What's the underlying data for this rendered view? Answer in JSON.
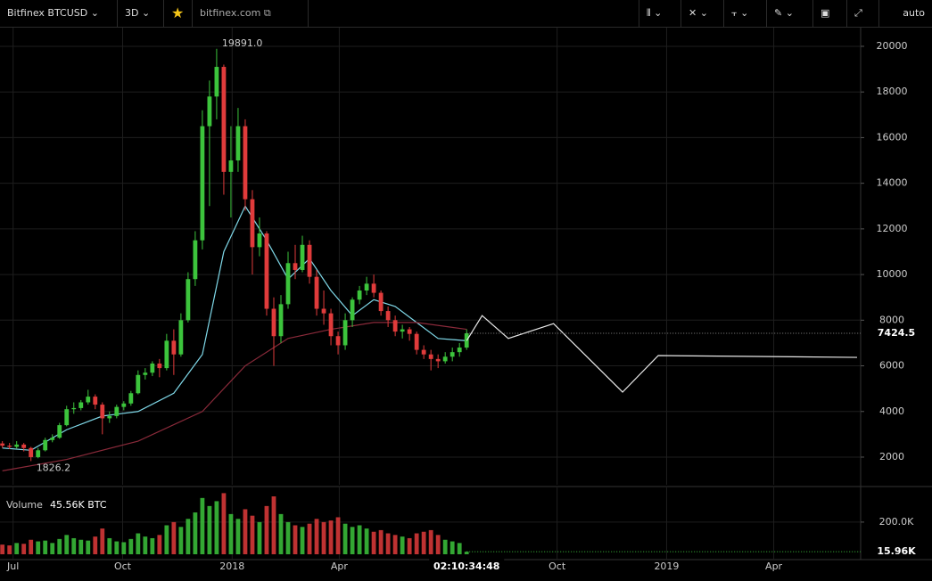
{
  "toolbar": {
    "symbol": "Bitfinex BTCUSD",
    "interval": "3D",
    "site": "bitfinex.com",
    "scale_mode": "auto"
  },
  "chart_data": {
    "type": "candlestick",
    "x": [
      -9,
      -3,
      3,
      9,
      15,
      21,
      27,
      33,
      39,
      45,
      51,
      57,
      63,
      69,
      75,
      81,
      87,
      93,
      99,
      105,
      111,
      117,
      123,
      129,
      135,
      141,
      147,
      153,
      159,
      165,
      171,
      177,
      183,
      189,
      195,
      201,
      207,
      213,
      219,
      225,
      231,
      237,
      243,
      249,
      255,
      261,
      267,
      273,
      279,
      285,
      291,
      297,
      303,
      309,
      315,
      321,
      327,
      333,
      339,
      345,
      351,
      357,
      363,
      369,
      375,
      381
    ],
    "open": [
      2600,
      2500,
      2450,
      2550,
      2400,
      2000,
      2300,
      2750,
      2850,
      3400,
      4100,
      4150,
      4400,
      4650,
      4300,
      3700,
      3800,
      4200,
      4350,
      4800,
      5600,
      5700,
      6100,
      5900,
      7100,
      6500,
      8000,
      9800,
      11500,
      16500,
      17800,
      19100,
      14500,
      15000,
      16500,
      13300,
      11200,
      11800,
      8500,
      7300,
      8700,
      10500,
      10200,
      11300,
      9900,
      8500,
      8300,
      7300,
      6900,
      8000,
      8900,
      9300,
      9600,
      9200,
      8400,
      8000,
      7500,
      7600,
      7400,
      6700,
      6500,
      6300,
      6200,
      6400,
      6600,
      6800
    ],
    "high": [
      2700,
      2620,
      2700,
      2620,
      2450,
      2400,
      2850,
      3000,
      3500,
      4250,
      4400,
      4500,
      4950,
      4750,
      4400,
      4000,
      4300,
      4450,
      4900,
      5800,
      5900,
      6200,
      6300,
      7400,
      7600,
      8300,
      10100,
      11900,
      17200,
      18500,
      19891,
      19200,
      16500,
      17300,
      16800,
      13700,
      12500,
      11900,
      9000,
      9100,
      11000,
      11300,
      11700,
      11500,
      10200,
      9300,
      8500,
      7500,
      8300,
      9000,
      9500,
      9900,
      10000,
      9300,
      8600,
      8200,
      7800,
      7700,
      7500,
      6900,
      6700,
      6500,
      6600,
      6800,
      7000,
      7600
    ],
    "low": [
      2400,
      2350,
      2380,
      2250,
      1826.2,
      1950,
      2250,
      2650,
      2800,
      3350,
      3900,
      4050,
      4300,
      4100,
      3000,
      3500,
      3700,
      4050,
      4250,
      4750,
      5400,
      5550,
      5500,
      5800,
      5600,
      6400,
      7900,
      9500,
      11100,
      13000,
      16800,
      13500,
      12500,
      14500,
      12800,
      10000,
      10800,
      8200,
      6000,
      7000,
      8500,
      9800,
      10100,
      9600,
      8200,
      7800,
      6900,
      6500,
      6700,
      7700,
      8700,
      9100,
      9000,
      8200,
      7700,
      7300,
      7200,
      7100,
      6500,
      6300,
      5800,
      5900,
      6100,
      6200,
      6400,
      6700
    ],
    "close": [
      2500,
      2450,
      2550,
      2400,
      2000,
      2300,
      2750,
      2850,
      3400,
      4100,
      4150,
      4400,
      4650,
      4300,
      3700,
      3800,
      4200,
      4350,
      4800,
      5600,
      5700,
      6100,
      5900,
      7100,
      6500,
      8000,
      9800,
      11500,
      16500,
      17800,
      19100,
      14500,
      15000,
      16500,
      13300,
      11200,
      11800,
      8500,
      7300,
      8700,
      10500,
      10200,
      11300,
      9900,
      8500,
      8300,
      7300,
      6900,
      8000,
      8900,
      9300,
      9600,
      9200,
      8400,
      8000,
      7500,
      7600,
      7400,
      6700,
      6500,
      6300,
      6200,
      6400,
      6600,
      6800,
      7424.5
    ],
    "up_color": "#3cc43c",
    "down_color": "#e03b3b",
    "xlim": [
      -11,
      712
    ],
    "xticks": [
      {
        "value": 0,
        "label": "Jul"
      },
      {
        "value": 92,
        "label": "Oct"
      },
      {
        "value": 184,
        "label": "2018"
      },
      {
        "value": 274,
        "label": "Apr"
      },
      {
        "value": 457,
        "label": "Oct"
      },
      {
        "value": 549,
        "label": "2019"
      },
      {
        "value": 639,
        "label": "Apr"
      }
    ],
    "ylim": [
      945,
      20780
    ],
    "yticks": [
      2000,
      4000,
      6000,
      8000,
      10000,
      12000,
      14000,
      16000,
      18000,
      20000
    ],
    "grid": true,
    "overlays": [
      {
        "color": "#7fd8e8",
        "x": [
          -9,
          15,
          45,
          75,
          105,
          135,
          159,
          177,
          195,
          213,
          231,
          249,
          267,
          285,
          303,
          321,
          339,
          357,
          381
        ],
        "values": [
          2400,
          2300,
          3200,
          3800,
          4000,
          4800,
          6500,
          11000,
          13000,
          11500,
          9800,
          10700,
          9300,
          8200,
          8900,
          8600,
          7900,
          7200,
          7100
        ]
      },
      {
        "color": "#8a2a3a",
        "x": [
          -9,
          45,
          105,
          159,
          195,
          231,
          267,
          303,
          339,
          381
        ],
        "values": [
          1400,
          1900,
          2700,
          4000,
          6000,
          7200,
          7600,
          7900,
          7900,
          7600
        ]
      }
    ],
    "drawing": {
      "color": "#e8e8e8",
      "x": [
        381,
        394,
        416,
        454,
        512,
        542,
        709
      ],
      "values": [
        7100,
        8200,
        7200,
        7850,
        4850,
        6450,
        6370
      ]
    },
    "annotations": [
      {
        "label": "19891.0",
        "x": 171,
        "value": 19891
      },
      {
        "label": "1826.2",
        "x": 15,
        "value": 1826.2
      }
    ],
    "last_price": {
      "value": 7424.5,
      "label": "7424.5"
    },
    "countdown": "02:10:34:48",
    "volume": {
      "name": "Volume",
      "value_text": "45.56K BTC",
      "values": [
        60000,
        55000,
        70000,
        65000,
        90000,
        80000,
        85000,
        70000,
        95000,
        120000,
        100000,
        90000,
        85000,
        110000,
        160000,
        100000,
        80000,
        75000,
        95000,
        130000,
        110000,
        100000,
        120000,
        180000,
        200000,
        170000,
        220000,
        260000,
        350000,
        300000,
        330000,
        380000,
        250000,
        220000,
        280000,
        240000,
        200000,
        300000,
        360000,
        250000,
        200000,
        180000,
        170000,
        190000,
        220000,
        200000,
        210000,
        230000,
        190000,
        170000,
        180000,
        160000,
        140000,
        150000,
        130000,
        120000,
        110000,
        100000,
        130000,
        140000,
        150000,
        120000,
        90000,
        80000,
        70000,
        15960
      ],
      "ylim": [
        0,
        410000
      ],
      "yticks": [
        {
          "value": 200000,
          "label": "200.0K"
        }
      ],
      "last": {
        "value": 15960,
        "label": "15.96K"
      }
    }
  }
}
